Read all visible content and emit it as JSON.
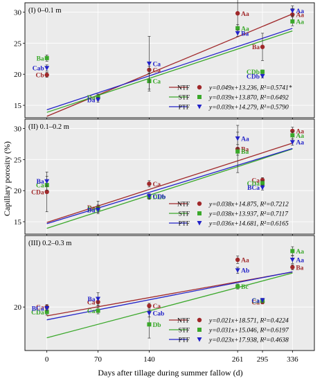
{
  "figure": {
    "ylabel": "Capillary porosity (%)",
    "xlabel": "Days after tillage during summer fallow (d)",
    "x_ticks": [
      0,
      70,
      140,
      261,
      295,
      336
    ]
  },
  "colors": {
    "NTF": "#a0282a",
    "STF": "#3aa82a",
    "PTF": "#2222c8",
    "panel_bg": "#ebebeb"
  },
  "chart_data": [
    {
      "type": "scatter",
      "title": "(I) 0–0.1 m",
      "xlim": [
        -30,
        366
      ],
      "ylim": [
        13,
        31.5
      ],
      "yticks": [
        15,
        20,
        25,
        30
      ],
      "grid": true,
      "legend_position": "bottom-right",
      "series": [
        {
          "name": "NTF",
          "color": "#a0282a",
          "x": [
            0,
            70,
            140,
            261,
            295,
            336
          ],
          "y": [
            19.9,
            16.3,
            20.7,
            29.8,
            24.4,
            29.6
          ],
          "err": [
            0.4,
            0.4,
            0.6,
            2.5,
            2.2,
            1.0
          ],
          "labels": [
            "Cb",
            "Da",
            "Ca",
            "Aa",
            "Ba",
            "Aa"
          ]
        },
        {
          "name": "STF",
          "color": "#3aa82a",
          "x": [
            0,
            70,
            140,
            261,
            295,
            336
          ],
          "y": [
            22.6,
            16.3,
            18.9,
            27.4,
            20.4,
            28.5
          ],
          "err": [
            0.5,
            0.5,
            1.3,
            0.6,
            0.3,
            0.7
          ],
          "labels": [
            "Ba",
            "Da",
            "Ca",
            "Aa",
            "CDb",
            "Aa"
          ]
        },
        {
          "name": "PTF",
          "color": "#2222c8",
          "x": [
            0,
            70,
            140,
            261,
            295,
            336
          ],
          "y": [
            21.0,
            15.9,
            21.7,
            26.6,
            19.7,
            30.2
          ],
          "err": [
            0.5,
            0.4,
            4.4,
            0.5,
            0.3,
            0.8
          ],
          "labels": [
            "Cab",
            "Da",
            "Ca",
            "Ba",
            "CDb",
            "Aa"
          ]
        }
      ],
      "fits": [
        {
          "name": "NTF",
          "equation": "y=0.049x+13.236, R²=0.5741*",
          "slope": 0.049,
          "intercept": 13.236
        },
        {
          "name": "STF",
          "equation": "y=0.039x+13.870, R²=0.6492",
          "slope": 0.039,
          "intercept": 13.87
        },
        {
          "name": "PTF",
          "equation": "y=0.039x+14.279, R²=0.5790",
          "slope": 0.039,
          "intercept": 14.279
        }
      ]
    },
    {
      "type": "scatter",
      "title": "(II) 0.1–0.2 m",
      "xlim": [
        -30,
        366
      ],
      "ylim": [
        13,
        31.5
      ],
      "yticks": [
        15,
        20,
        25,
        30
      ],
      "grid": true,
      "legend_position": "bottom-right",
      "series": [
        {
          "name": "NTF",
          "color": "#a0282a",
          "x": [
            0,
            70,
            140,
            261,
            295,
            336
          ],
          "y": [
            19.8,
            17.3,
            21.1,
            26.7,
            21.7,
            29.6
          ],
          "err": [
            3.2,
            1.0,
            0.5,
            3.8,
            0.4,
            0.6
          ],
          "labels": [
            "CDa",
            "Da",
            "Ca",
            "Ba",
            "Ca",
            "Aa"
          ]
        },
        {
          "name": "STF",
          "color": "#3aa82a",
          "x": [
            0,
            70,
            140,
            261,
            295,
            336
          ],
          "y": [
            20.9,
            17.1,
            19.0,
            26.3,
            21.2,
            28.9
          ],
          "err": [
            0.8,
            0.6,
            0.4,
            0.6,
            0.4,
            0.6
          ],
          "labels": [
            "Ca",
            "Ea",
            "DEb",
            "Ba",
            "CDa",
            "Aa"
          ]
        },
        {
          "name": "PTF",
          "color": "#2222c8",
          "x": [
            0,
            70,
            140,
            261,
            295,
            336
          ],
          "y": [
            21.5,
            16.9,
            19.1,
            28.4,
            20.5,
            27.8
          ],
          "err": [
            0.8,
            0.4,
            0.4,
            1.0,
            0.4,
            0.5
          ],
          "labels": [
            "Ba",
            "Da",
            "CDb",
            "Aa",
            "BCa",
            "Aa"
          ]
        }
      ],
      "fits": [
        {
          "name": "NTF",
          "equation": "y=0.038x+14.875, R²=0.7212",
          "slope": 0.038,
          "intercept": 14.875
        },
        {
          "name": "STF",
          "equation": "y=0.038x+13.937, R²=0.7117",
          "slope": 0.038,
          "intercept": 13.937
        },
        {
          "name": "PTF",
          "equation": "y=0.036x+14.681, R²=0.6165",
          "slope": 0.036,
          "intercept": 14.681
        }
      ]
    },
    {
      "type": "scatter",
      "title": "(III) 0.2–0.3 m",
      "xlim": [
        -30,
        366
      ],
      "ylim": [
        13,
        31.5
      ],
      "yticks": [
        20
      ],
      "grid": true,
      "legend_position": "bottom-right",
      "series": [
        {
          "name": "NTF",
          "color": "#a0282a",
          "x": [
            0,
            70,
            140,
            261,
            295,
            336
          ],
          "y": [
            20.0,
            20.8,
            20.2,
            27.6,
            20.8,
            26.4
          ],
          "err": [
            0.4,
            0.6,
            0.4,
            0.6,
            0.3,
            0.4
          ],
          "labels": [
            "Ca",
            "Ca",
            "Ca",
            "Aa",
            "Ca",
            "Ba"
          ]
        },
        {
          "name": "STF",
          "color": "#3aa82a",
          "x": [
            0,
            70,
            140,
            261,
            295,
            336
          ],
          "y": [
            19.2,
            19.4,
            17.2,
            23.3,
            21.0,
            29.0
          ],
          "err": [
            0.5,
            0.5,
            2.2,
            0.4,
            0.3,
            0.7
          ],
          "labels": [
            "CDa",
            "Ca",
            "Db",
            "Bc",
            "Ca",
            "Aa"
          ]
        },
        {
          "name": "PTF",
          "color": "#2222c8",
          "x": [
            0,
            70,
            140,
            261,
            295,
            336
          ],
          "y": [
            19.8,
            21.3,
            19.0,
            25.9,
            21.1,
            27.6
          ],
          "err": [
            0.4,
            1.0,
            0.6,
            0.5,
            0.3,
            0.6
          ],
          "labels": [
            "BCa",
            "Ba",
            "Cab",
            "Ab",
            "Ca",
            "Aa"
          ]
        }
      ],
      "fits": [
        {
          "name": "NTF",
          "equation": "y=0.021x+18.571, R²=0.4224",
          "slope": 0.021,
          "intercept": 18.571
        },
        {
          "name": "STF",
          "equation": "y=0.031x+15.046, R²=0.6197",
          "slope": 0.031,
          "intercept": 15.046
        },
        {
          "name": "PTF",
          "equation": "y=0.023x+17.938, R²=0.4638",
          "slope": 0.023,
          "intercept": 17.938
        }
      ]
    }
  ]
}
